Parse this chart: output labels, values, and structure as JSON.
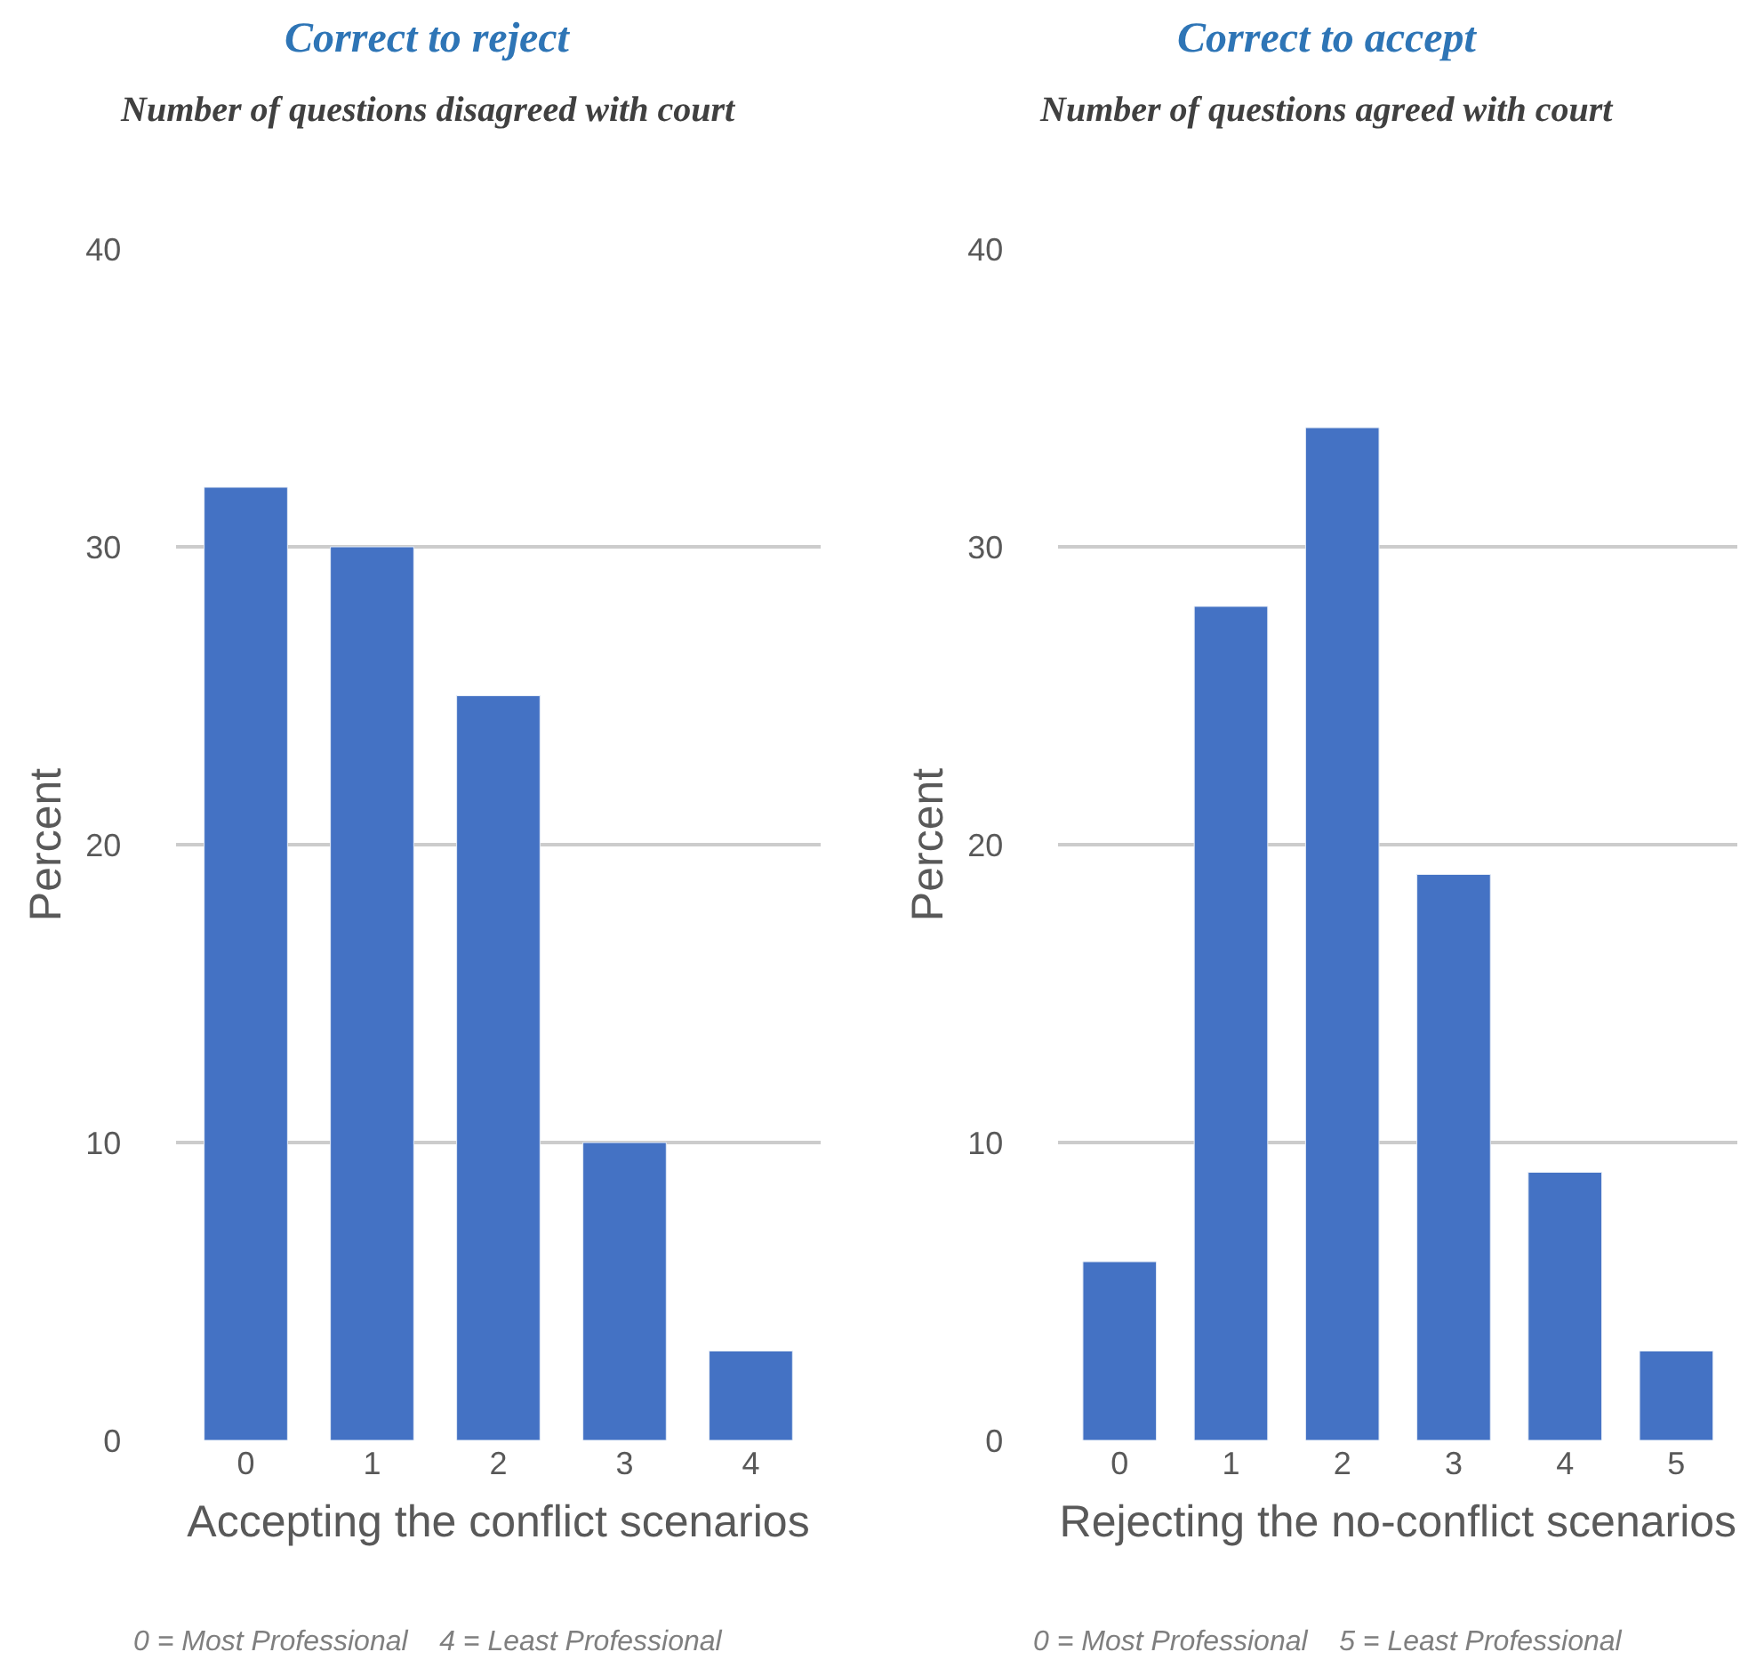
{
  "chart_data": [
    {
      "type": "bar",
      "title": "Correct to reject",
      "subtitle": "Number of questions disagreed with court",
      "categories": [
        "0",
        "1",
        "2",
        "3",
        "4"
      ],
      "values": [
        32,
        30,
        25,
        10,
        3
      ],
      "color": "#4472c4",
      "ylim": [
        0,
        40
      ],
      "yticks": [
        0,
        10,
        20,
        30,
        40
      ],
      "grid": "y",
      "xlabel": "Accepting the conflict scenarios",
      "ylabel": "Percent",
      "annotations": [
        "0 = Most Professional    4 = Least Professional"
      ]
    },
    {
      "type": "bar",
      "title": "Correct to accept",
      "subtitle": "Number of questions agreed with court",
      "categories": [
        "0",
        "1",
        "2",
        "3",
        "4",
        "5"
      ],
      "values": [
        6,
        28,
        34,
        19,
        9,
        3
      ],
      "color": "#4472c4",
      "ylim": [
        0,
        40
      ],
      "yticks": [
        0,
        10,
        20,
        30,
        40
      ],
      "grid": "y",
      "xlabel": "Rejecting the no-conflict scenarios",
      "ylabel": "Percent",
      "annotations": [
        "0 = Most Professional    5 = Least Professional"
      ]
    }
  ]
}
